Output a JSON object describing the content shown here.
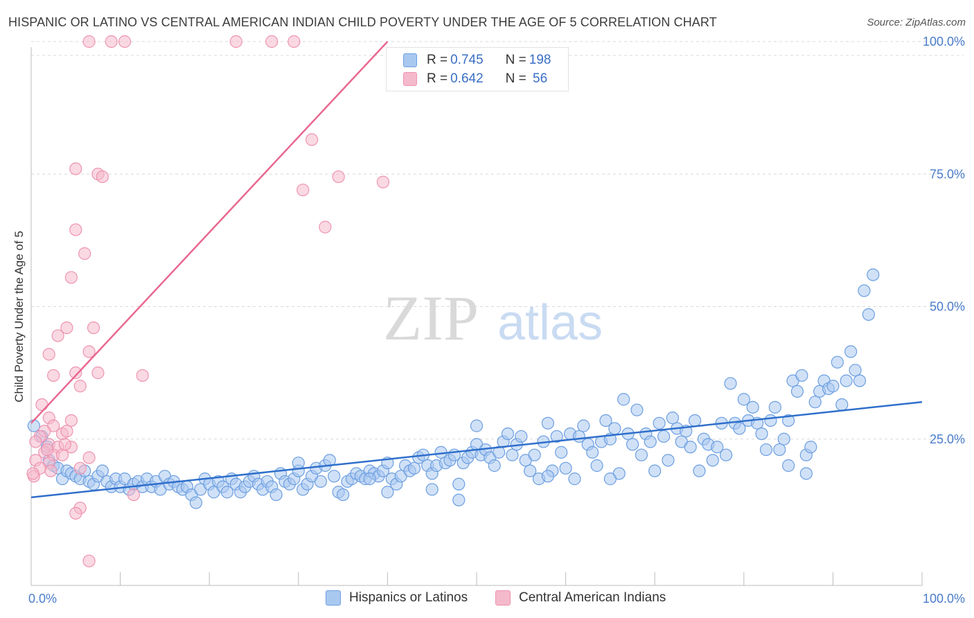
{
  "title": "HISPANIC OR LATINO VS CENTRAL AMERICAN INDIAN CHILD POVERTY UNDER THE AGE OF 5 CORRELATION CHART",
  "source": "Source: ZipAtlas.com",
  "watermark": {
    "zip": "ZIP",
    "atlas": "atlas"
  },
  "colors": {
    "blue_fill": "#a9c8f0",
    "blue_stroke": "#6c9ee0",
    "blue_line": "#2f6fcb",
    "pink_fill": "#f5b9cc",
    "pink_stroke": "#ee93b0",
    "pink_line": "#e9678f",
    "grid": "#d8d8d8",
    "tick_text": "#4a7cc9"
  },
  "legend": {
    "rows": [
      {
        "r_label": "R = ",
        "r_value": "0.745",
        "n_label": "N = ",
        "n_value": "198"
      },
      {
        "r_label": "R = ",
        "r_value": "0.642",
        "n_label": "N = ",
        "n_value": " 56"
      }
    ],
    "bottom": [
      "Hispanics or Latinos",
      "Central American Indians"
    ]
  },
  "chart_data": {
    "type": "scatter",
    "title": "HISPANIC OR LATINO VS CENTRAL AMERICAN INDIAN CHILD POVERTY UNDER THE AGE OF 5 CORRELATION CHART",
    "xlabel": "",
    "ylabel": "Child Poverty Under the Age of 5",
    "xlim": [
      0,
      100
    ],
    "ylim": [
      0,
      100
    ],
    "x_tick_labels": [
      "0.0%",
      "100.0%"
    ],
    "y_ticks": [
      25,
      50,
      75,
      100
    ],
    "y_tick_labels": [
      "25.0%",
      "50.0%",
      "75.0%",
      "100.0%"
    ],
    "grid": true,
    "legend_position": "top-center",
    "series": [
      {
        "name": "Hispanics or Latinos",
        "color": "#6c9ee0",
        "trend": {
          "x": [
            0,
            100
          ],
          "y": [
            14.0,
            32.0
          ]
        },
        "points": [
          [
            0.3,
            27.5
          ],
          [
            1.2,
            25.5
          ],
          [
            1.8,
            23.5
          ],
          [
            2.0,
            21.0
          ],
          [
            2.5,
            20.0
          ],
          [
            3.0,
            19.5
          ],
          [
            3.5,
            17.5
          ],
          [
            4.0,
            19.0
          ],
          [
            4.5,
            18.5
          ],
          [
            5.0,
            18.0
          ],
          [
            5.5,
            17.5
          ],
          [
            6.0,
            19.0
          ],
          [
            6.5,
            17.0
          ],
          [
            7.0,
            16.5
          ],
          [
            7.5,
            18.0
          ],
          [
            8.0,
            19.0
          ],
          [
            8.5,
            17.0
          ],
          [
            9.0,
            16.0
          ],
          [
            9.5,
            17.5
          ],
          [
            10.0,
            16.0
          ],
          [
            10.5,
            17.5
          ],
          [
            11.0,
            15.5
          ],
          [
            11.5,
            16.5
          ],
          [
            12.0,
            17.0
          ],
          [
            12.5,
            16.0
          ],
          [
            13.0,
            17.5
          ],
          [
            13.5,
            16.0
          ],
          [
            14.0,
            17.0
          ],
          [
            14.5,
            15.5
          ],
          [
            15.0,
            18.0
          ],
          [
            15.5,
            16.5
          ],
          [
            16.0,
            17.0
          ],
          [
            16.5,
            16.0
          ],
          [
            17.0,
            15.5
          ],
          [
            17.5,
            16.0
          ],
          [
            18.0,
            14.5
          ],
          [
            18.5,
            13.0
          ],
          [
            19.0,
            15.5
          ],
          [
            19.5,
            17.5
          ],
          [
            20.0,
            16.5
          ],
          [
            20.5,
            15.0
          ],
          [
            21.0,
            17.0
          ],
          [
            21.5,
            16.0
          ],
          [
            22.0,
            15.0
          ],
          [
            22.5,
            17.5
          ],
          [
            23.0,
            16.5
          ],
          [
            23.5,
            15.0
          ],
          [
            24.0,
            16.0
          ],
          [
            24.5,
            17.0
          ],
          [
            25.0,
            18.0
          ],
          [
            25.5,
            16.5
          ],
          [
            26.0,
            15.5
          ],
          [
            26.5,
            17.0
          ],
          [
            27.0,
            16.0
          ],
          [
            27.5,
            14.5
          ],
          [
            28.0,
            18.5
          ],
          [
            28.5,
            17.0
          ],
          [
            29.0,
            16.5
          ],
          [
            29.5,
            17.5
          ],
          [
            30.0,
            19.0
          ],
          [
            30.5,
            15.5
          ],
          [
            31.0,
            16.5
          ],
          [
            31.5,
            18.0
          ],
          [
            32.0,
            19.5
          ],
          [
            32.5,
            17.0
          ],
          [
            33.0,
            20.0
          ],
          [
            33.5,
            21.0
          ],
          [
            34.0,
            18.0
          ],
          [
            34.5,
            15.0
          ],
          [
            35.0,
            14.5
          ],
          [
            35.5,
            17.0
          ],
          [
            36.0,
            17.5
          ],
          [
            36.5,
            18.5
          ],
          [
            37.0,
            18.0
          ],
          [
            37.5,
            17.5
          ],
          [
            38.0,
            19.0
          ],
          [
            38.5,
            18.5
          ],
          [
            39.0,
            18.0
          ],
          [
            39.5,
            19.0
          ],
          [
            40.0,
            20.5
          ],
          [
            40.5,
            17.5
          ],
          [
            41.0,
            16.5
          ],
          [
            41.5,
            18.0
          ],
          [
            42.0,
            20.0
          ],
          [
            42.5,
            19.0
          ],
          [
            43.0,
            19.5
          ],
          [
            43.5,
            21.5
          ],
          [
            44.0,
            22.0
          ],
          [
            44.5,
            20.0
          ],
          [
            45.0,
            18.5
          ],
          [
            45.5,
            20.0
          ],
          [
            46.0,
            22.5
          ],
          [
            46.5,
            20.5
          ],
          [
            47.0,
            21.0
          ],
          [
            47.5,
            22.0
          ],
          [
            48.0,
            16.5
          ],
          [
            48.5,
            20.5
          ],
          [
            49.0,
            21.5
          ],
          [
            49.5,
            22.5
          ],
          [
            50.0,
            24.0
          ],
          [
            50.5,
            22.0
          ],
          [
            51.0,
            23.0
          ],
          [
            51.5,
            21.5
          ],
          [
            52.0,
            20.0
          ],
          [
            52.5,
            22.5
          ],
          [
            53.0,
            24.5
          ],
          [
            53.5,
            26.0
          ],
          [
            54.0,
            22.0
          ],
          [
            54.5,
            24.0
          ],
          [
            55.0,
            25.5
          ],
          [
            55.5,
            21.0
          ],
          [
            56.0,
            19.0
          ],
          [
            56.5,
            22.0
          ],
          [
            57.0,
            17.5
          ],
          [
            57.5,
            24.5
          ],
          [
            58.0,
            28.0
          ],
          [
            58.5,
            19.0
          ],
          [
            59.0,
            25.5
          ],
          [
            59.5,
            22.5
          ],
          [
            60.0,
            19.5
          ],
          [
            60.5,
            26.0
          ],
          [
            61.0,
            17.5
          ],
          [
            61.5,
            25.5
          ],
          [
            62.0,
            27.5
          ],
          [
            62.5,
            24.0
          ],
          [
            63.0,
            22.5
          ],
          [
            63.5,
            20.0
          ],
          [
            64.0,
            24.5
          ],
          [
            64.5,
            28.5
          ],
          [
            65.0,
            25.0
          ],
          [
            65.5,
            27.0
          ],
          [
            66.0,
            18.5
          ],
          [
            66.5,
            32.5
          ],
          [
            67.0,
            26.0
          ],
          [
            67.5,
            24.0
          ],
          [
            68.0,
            30.5
          ],
          [
            68.5,
            22.0
          ],
          [
            69.0,
            26.0
          ],
          [
            69.5,
            24.5
          ],
          [
            70.0,
            19.0
          ],
          [
            70.5,
            28.0
          ],
          [
            71.0,
            25.5
          ],
          [
            71.5,
            21.0
          ],
          [
            72.0,
            29.0
          ],
          [
            72.5,
            27.0
          ],
          [
            73.0,
            24.5
          ],
          [
            73.5,
            26.5
          ],
          [
            74.0,
            23.5
          ],
          [
            74.5,
            28.5
          ],
          [
            75.0,
            19.0
          ],
          [
            75.5,
            25.0
          ],
          [
            76.0,
            24.0
          ],
          [
            76.5,
            21.0
          ],
          [
            77.0,
            23.5
          ],
          [
            77.5,
            28.0
          ],
          [
            78.0,
            22.0
          ],
          [
            78.5,
            35.5
          ],
          [
            79.0,
            28.0
          ],
          [
            79.5,
            27.0
          ],
          [
            80.0,
            32.5
          ],
          [
            80.5,
            28.5
          ],
          [
            81.0,
            31.0
          ],
          [
            81.5,
            28.0
          ],
          [
            82.0,
            26.0
          ],
          [
            82.5,
            23.0
          ],
          [
            83.0,
            28.5
          ],
          [
            83.5,
            31.0
          ],
          [
            84.0,
            23.0
          ],
          [
            84.5,
            25.0
          ],
          [
            85.0,
            28.5
          ],
          [
            85.5,
            36.0
          ],
          [
            86.0,
            34.0
          ],
          [
            86.5,
            37.0
          ],
          [
            87.0,
            22.0
          ],
          [
            87.5,
            23.5
          ],
          [
            88.0,
            32.0
          ],
          [
            88.5,
            34.0
          ],
          [
            89.0,
            36.0
          ],
          [
            89.5,
            34.5
          ],
          [
            90.0,
            35.0
          ],
          [
            90.5,
            39.5
          ],
          [
            91.0,
            31.5
          ],
          [
            91.5,
            36.0
          ],
          [
            92.0,
            41.5
          ],
          [
            92.5,
            38.0
          ],
          [
            93.0,
            36.0
          ],
          [
            93.5,
            53.0
          ],
          [
            94.0,
            48.5
          ],
          [
            94.5,
            56.0
          ],
          [
            85.0,
            20.0
          ],
          [
            87.0,
            18.5
          ],
          [
            65.0,
            17.5
          ],
          [
            40.0,
            15.0
          ],
          [
            45.0,
            15.5
          ],
          [
            48.0,
            13.5
          ],
          [
            30.0,
            20.5
          ],
          [
            38.0,
            17.5
          ],
          [
            58.0,
            18.0
          ],
          [
            50.0,
            27.5
          ]
        ]
      },
      {
        "name": "Central American Indians",
        "color": "#ee93b0",
        "trend": {
          "x": [
            0,
            40
          ],
          "y": [
            28.0,
            100.0
          ]
        },
        "points": [
          [
            6.5,
            100.0
          ],
          [
            9.0,
            100.0
          ],
          [
            10.5,
            100.0
          ],
          [
            23.0,
            100.0
          ],
          [
            27.0,
            100.0
          ],
          [
            29.5,
            100.0
          ],
          [
            31.5,
            81.5
          ],
          [
            34.5,
            74.5
          ],
          [
            39.5,
            73.5
          ],
          [
            30.5,
            72.0
          ],
          [
            33.0,
            65.0
          ],
          [
            5.0,
            76.0
          ],
          [
            7.5,
            75.0
          ],
          [
            8.0,
            74.5
          ],
          [
            5.0,
            64.5
          ],
          [
            6.0,
            60.0
          ],
          [
            4.5,
            55.5
          ],
          [
            7.0,
            46.0
          ],
          [
            4.0,
            46.0
          ],
          [
            3.0,
            44.5
          ],
          [
            6.5,
            41.5
          ],
          [
            2.0,
            41.0
          ],
          [
            7.5,
            37.5
          ],
          [
            12.5,
            37.0
          ],
          [
            5.0,
            37.5
          ],
          [
            2.5,
            37.0
          ],
          [
            5.5,
            35.0
          ],
          [
            1.2,
            31.5
          ],
          [
            2.0,
            29.0
          ],
          [
            4.5,
            28.5
          ],
          [
            2.5,
            27.5
          ],
          [
            1.5,
            26.5
          ],
          [
            3.5,
            26.0
          ],
          [
            4.0,
            26.5
          ],
          [
            1.0,
            25.5
          ],
          [
            0.5,
            24.5
          ],
          [
            2.0,
            24.0
          ],
          [
            3.0,
            23.5
          ],
          [
            4.5,
            23.5
          ],
          [
            1.5,
            22.5
          ],
          [
            2.5,
            22.0
          ],
          [
            0.5,
            21.0
          ],
          [
            3.5,
            22.0
          ],
          [
            6.5,
            21.5
          ],
          [
            2.0,
            20.5
          ],
          [
            1.0,
            19.5
          ],
          [
            5.5,
            19.5
          ],
          [
            0.3,
            18.0
          ],
          [
            0.2,
            18.5
          ],
          [
            1.8,
            23.0
          ],
          [
            3.8,
            24.0
          ],
          [
            11.5,
            14.5
          ],
          [
            5.5,
            12.0
          ],
          [
            5.0,
            11.0
          ],
          [
            6.5,
            2.0
          ],
          [
            2.2,
            19.0
          ]
        ]
      }
    ]
  }
}
